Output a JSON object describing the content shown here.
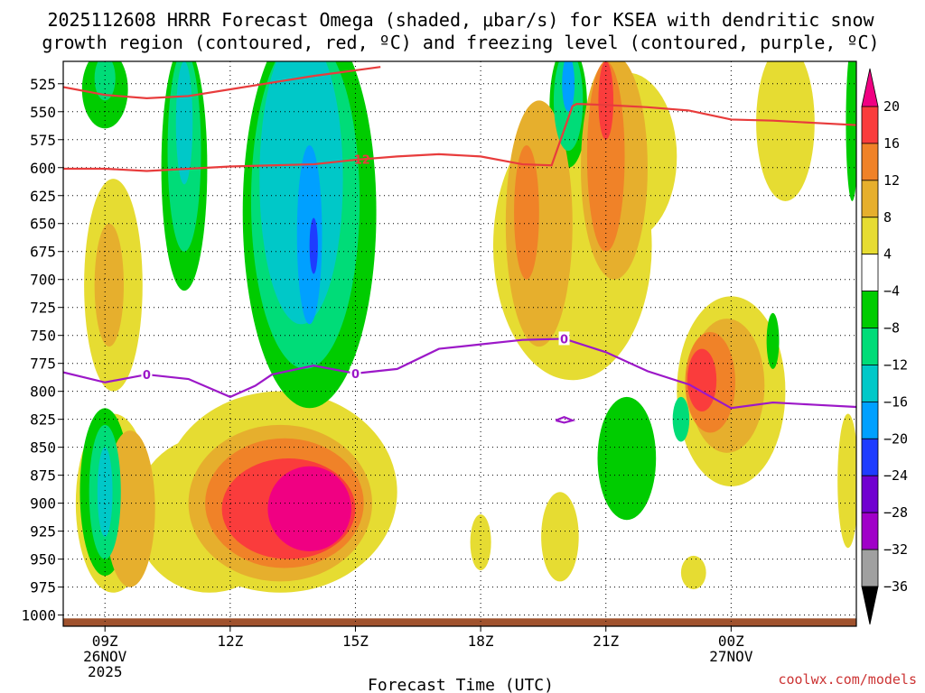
{
  "chart_data": {
    "type": "heatmap",
    "title_line1": "2025112608 HRRR Forecast Omega (shaded, μbar/s) for KSEA with dendritic snow",
    "title_line2": "growth region (contoured, red, ºC) and freezing level (contoured, purple, ºC)",
    "xlabel": "Forecast Time (UTC)",
    "credit": "coolwx.com/models",
    "y_levels": [
      525,
      550,
      575,
      600,
      625,
      650,
      675,
      700,
      725,
      750,
      775,
      800,
      825,
      850,
      875,
      900,
      925,
      950,
      975,
      1000
    ],
    "y_range": [
      505,
      1010
    ],
    "x_range": [
      8,
      27
    ],
    "x_ticks": [
      {
        "x": 9,
        "line1": "09Z",
        "line2": "26NOV",
        "line3": "2025"
      },
      {
        "x": 12,
        "line1": "12Z",
        "line2": "",
        "line3": ""
      },
      {
        "x": 15,
        "line1": "15Z",
        "line2": "",
        "line3": ""
      },
      {
        "x": 18,
        "line1": "18Z",
        "line2": "",
        "line3": ""
      },
      {
        "x": 21,
        "line1": "21Z",
        "line2": "",
        "line3": ""
      },
      {
        "x": 24,
        "line1": "00Z",
        "line2": "27NOV",
        "line3": ""
      }
    ],
    "colorbar": {
      "bins": [
        {
          "lo": -40,
          "hi": -36,
          "color": "#000000"
        },
        {
          "lo": -36,
          "hi": -32,
          "color": "#a0a0a0"
        },
        {
          "lo": -32,
          "hi": -28,
          "color": "#a000c8"
        },
        {
          "lo": -28,
          "hi": -24,
          "color": "#7000d0"
        },
        {
          "lo": -24,
          "hi": -20,
          "color": "#1e3cff"
        },
        {
          "lo": -20,
          "hi": -16,
          "color": "#00a0ff"
        },
        {
          "lo": -16,
          "hi": -12,
          "color": "#00c8c8"
        },
        {
          "lo": -12,
          "hi": -8,
          "color": "#00dc78"
        },
        {
          "lo": -8,
          "hi": -4,
          "color": "#00cc00"
        },
        {
          "lo": -4,
          "hi": 4,
          "color": "#ffffff"
        },
        {
          "lo": 4,
          "hi": 8,
          "color": "#e6dc32"
        },
        {
          "lo": 8,
          "hi": 12,
          "color": "#e6af2d"
        },
        {
          "lo": 12,
          "hi": 16,
          "color": "#f08228"
        },
        {
          "lo": 16,
          "hi": 20,
          "color": "#fa3c3c"
        },
        {
          "lo": 20,
          "hi": 24,
          "color": "#f00082"
        }
      ],
      "labels": [
        "20",
        "16",
        "12",
        "8",
        "4",
        "−4",
        "−8",
        "−12",
        "−16",
        "−20",
        "−24",
        "−28",
        "−32",
        "−36"
      ]
    },
    "omega_features": [
      {
        "name": "yellow-low-left",
        "level": 4,
        "x": 9.2,
        "p": 900,
        "rx": 0.9,
        "rp": 80
      },
      {
        "name": "orange-low-left",
        "level": 8,
        "x": 9.6,
        "p": 905,
        "rx": 0.6,
        "rp": 70
      },
      {
        "name": "yellow-main-blob",
        "level": 4,
        "x": 13.2,
        "p": 890,
        "rx": 2.8,
        "rp": 90
      },
      {
        "name": "yellow-main-blob-2",
        "level": 4,
        "x": 11.5,
        "p": 910,
        "rx": 1.8,
        "rp": 70
      },
      {
        "name": "goldenrod-main",
        "level": 8,
        "x": 13.2,
        "p": 900,
        "rx": 2.2,
        "rp": 70
      },
      {
        "name": "orange-main",
        "level": 12,
        "x": 13.3,
        "p": 900,
        "rx": 1.9,
        "rp": 58
      },
      {
        "name": "red-main",
        "level": 16,
        "x": 13.4,
        "p": 905,
        "rx": 1.6,
        "rp": 45
      },
      {
        "name": "pink-main",
        "level": 20,
        "x": 13.9,
        "p": 905,
        "rx": 1.0,
        "rp": 38
      },
      {
        "name": "yellow-upper-left",
        "level": 4,
        "x": 9.2,
        "p": 705,
        "rx": 0.7,
        "rp": 95
      },
      {
        "name": "orange-upper-left",
        "level": 8,
        "x": 9.1,
        "p": 705,
        "rx": 0.35,
        "rp": 55
      },
      {
        "name": "yellow-right-column",
        "level": 4,
        "x": 20.2,
        "p": 670,
        "rx": 1.9,
        "rp": 120
      },
      {
        "name": "yellow-right-column-2",
        "level": 4,
        "x": 21.5,
        "p": 590,
        "rx": 1.2,
        "rp": 75
      },
      {
        "name": "goldenrod-right",
        "level": 8,
        "x": 19.4,
        "p": 650,
        "rx": 0.8,
        "rp": 110
      },
      {
        "name": "goldenrod-right-2",
        "level": 8,
        "x": 21.2,
        "p": 600,
        "rx": 0.8,
        "rp": 100
      },
      {
        "name": "orange-right",
        "level": 12,
        "x": 19.1,
        "p": 640,
        "rx": 0.3,
        "rp": 60
      },
      {
        "name": "orange-right-2",
        "level": 12,
        "x": 21.0,
        "p": 590,
        "rx": 0.45,
        "rp": 85
      },
      {
        "name": "red-right-top",
        "level": 16,
        "x": 21.0,
        "p": 540,
        "rx": 0.18,
        "rp": 35
      },
      {
        "name": "yellow-far-right",
        "level": 4,
        "x": 25.3,
        "p": 560,
        "rx": 0.7,
        "rp": 70
      },
      {
        "name": "yellow-low-right",
        "level": 4,
        "x": 24.0,
        "p": 800,
        "rx": 1.3,
        "rp": 85
      },
      {
        "name": "goldenrod-low-right",
        "level": 8,
        "x": 23.9,
        "p": 795,
        "rx": 0.9,
        "rp": 60
      },
      {
        "name": "orange-low-right",
        "level": 12,
        "x": 23.5,
        "p": 792,
        "rx": 0.6,
        "rp": 45
      },
      {
        "name": "red-low-right",
        "level": 16,
        "x": 23.3,
        "p": 790,
        "rx": 0.35,
        "rp": 28
      },
      {
        "name": "yellow-small-1",
        "level": 4,
        "x": 18.0,
        "p": 935,
        "rx": 0.25,
        "rp": 25
      },
      {
        "name": "yellow-small-2",
        "level": 4,
        "x": 19.9,
        "p": 930,
        "rx": 0.45,
        "rp": 40
      },
      {
        "name": "yellow-small-3",
        "level": 4,
        "x": 23.1,
        "p": 962,
        "rx": 0.3,
        "rp": 15
      },
      {
        "name": "yellow-edge-right",
        "level": 4,
        "x": 26.8,
        "p": 880,
        "rx": 0.25,
        "rp": 60
      },
      {
        "name": "green-upper-left",
        "level": -4,
        "x": 9.0,
        "p": 530,
        "rx": 0.55,
        "rp": 35
      },
      {
        "name": "seafoam-upper-left",
        "level": -8,
        "x": 9.0,
        "p": 520,
        "rx": 0.25,
        "rp": 20
      },
      {
        "name": "green-low-left",
        "level": -4,
        "x": 9.0,
        "p": 890,
        "rx": 0.6,
        "rp": 75
      },
      {
        "name": "seafoam-low-left",
        "level": -8,
        "x": 9.0,
        "p": 890,
        "rx": 0.38,
        "rp": 60
      },
      {
        "name": "teal-low-left",
        "level": -12,
        "x": 9.0,
        "p": 890,
        "rx": 0.18,
        "rp": 40
      },
      {
        "name": "green-column-1",
        "level": -4,
        "x": 10.9,
        "p": 600,
        "rx": 0.55,
        "rp": 110
      },
      {
        "name": "seafoam-column-1",
        "level": -8,
        "x": 10.9,
        "p": 585,
        "rx": 0.4,
        "rp": 90
      },
      {
        "name": "teal-column-1",
        "level": -12,
        "x": 10.9,
        "p": 560,
        "rx": 0.2,
        "rp": 55
      },
      {
        "name": "green-column-2",
        "level": -4,
        "x": 13.9,
        "p": 640,
        "rx": 1.6,
        "rp": 175
      },
      {
        "name": "seafoam-column-2",
        "level": -8,
        "x": 13.8,
        "p": 630,
        "rx": 1.3,
        "rp": 150
      },
      {
        "name": "teal-column-2",
        "level": -12,
        "x": 13.7,
        "p": 610,
        "rx": 1.0,
        "rp": 130
      },
      {
        "name": "skyblue-column-2",
        "level": -16,
        "x": 13.9,
        "p": 660,
        "rx": 0.3,
        "rp": 80
      },
      {
        "name": "blue-column-2",
        "level": -20,
        "x": 14.0,
        "p": 670,
        "rx": 0.1,
        "rp": 25
      },
      {
        "name": "green-top-right",
        "level": -4,
        "x": 20.1,
        "p": 545,
        "rx": 0.45,
        "rp": 55
      },
      {
        "name": "seafoam-top-right",
        "level": -8,
        "x": 20.1,
        "p": 540,
        "rx": 0.35,
        "rp": 45
      },
      {
        "name": "skyblue-top-right",
        "level": -16,
        "x": 20.1,
        "p": 525,
        "rx": 0.15,
        "rp": 25
      },
      {
        "name": "green-right-low",
        "level": -4,
        "x": 21.5,
        "p": 860,
        "rx": 0.7,
        "rp": 55
      },
      {
        "name": "seafoam-right-low",
        "level": -8,
        "x": 22.8,
        "p": 825,
        "rx": 0.2,
        "rp": 20
      },
      {
        "name": "green-small-right",
        "level": -4,
        "x": 25.0,
        "p": 755,
        "rx": 0.15,
        "rp": 25
      },
      {
        "name": "green-edge-right",
        "level": -4,
        "x": 26.9,
        "p": 560,
        "rx": 0.15,
        "rp": 70
      }
    ],
    "red_contours": [
      {
        "label": "",
        "points": [
          [
            8,
            528
          ],
          [
            9,
            535
          ],
          [
            10,
            538
          ],
          [
            11,
            536
          ],
          [
            12,
            530
          ],
          [
            13,
            524
          ],
          [
            14,
            518
          ],
          [
            15,
            513
          ],
          [
            15.6,
            510
          ]
        ]
      },
      {
        "label": "-12",
        "label_x": 15.1,
        "points": [
          [
            8,
            601
          ],
          [
            9,
            601
          ],
          [
            10,
            603
          ],
          [
            11,
            601
          ],
          [
            12,
            599
          ],
          [
            13,
            598
          ],
          [
            14,
            597
          ],
          [
            15,
            593
          ],
          [
            16,
            590
          ],
          [
            17,
            588
          ],
          [
            18,
            590
          ],
          [
            19,
            597
          ],
          [
            19.7,
            598
          ],
          [
            20.2,
            545
          ],
          [
            20.3,
            543
          ],
          [
            21,
            544
          ],
          [
            22,
            546
          ],
          [
            23,
            549
          ],
          [
            24,
            557
          ],
          [
            25,
            558
          ],
          [
            26,
            560
          ],
          [
            27,
            562
          ]
        ]
      }
    ],
    "purple_contours": [
      {
        "label": "0",
        "label_positions": [
          10.0,
          15.0,
          20.0
        ],
        "points": [
          [
            8,
            783
          ],
          [
            9,
            792
          ],
          [
            10,
            785
          ],
          [
            11,
            789
          ],
          [
            12,
            805
          ],
          [
            12.6,
            795
          ],
          [
            13,
            785
          ],
          [
            14,
            777
          ],
          [
            15,
            784
          ],
          [
            16,
            780
          ],
          [
            17,
            762
          ],
          [
            18,
            758
          ],
          [
            19,
            754
          ],
          [
            20,
            753
          ],
          [
            21,
            765
          ],
          [
            22,
            782
          ],
          [
            23,
            794
          ],
          [
            24,
            815
          ],
          [
            25,
            810
          ],
          [
            26,
            812
          ],
          [
            27,
            814
          ]
        ]
      },
      {
        "label": "",
        "points": [
          [
            19.8,
            826
          ],
          [
            20.0,
            828
          ],
          [
            20.2,
            826
          ],
          [
            20.0,
            823
          ],
          [
            19.8,
            826
          ]
        ]
      }
    ]
  }
}
